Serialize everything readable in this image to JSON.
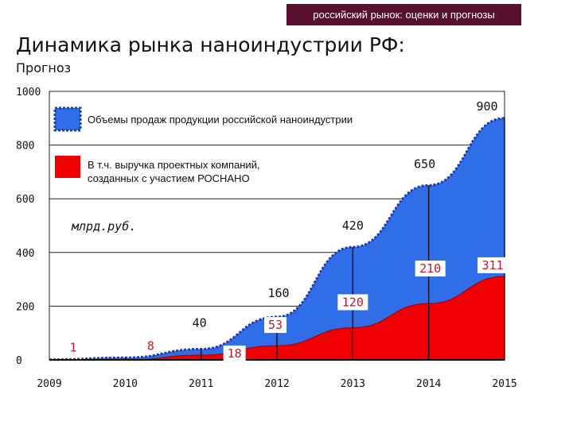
{
  "header": {
    "banner": "российский рынок: оценки и прогнозы",
    "title": "Динамика рынка наноиндустрии РФ:",
    "subtitle": "Прогноз"
  },
  "colors": {
    "banner_bg": "#5a0f2e",
    "total_fill": "#2f6ee8",
    "total_outline": "#1f3fa8",
    "revenue_fill": "#f00000",
    "value_label": "#c0182a"
  },
  "chart_data": {
    "type": "area",
    "x": [
      2009,
      2010,
      2011,
      2012,
      2013,
      2014,
      2015
    ],
    "xticks": [
      "2009",
      "2010",
      "2011",
      "2012",
      "2013",
      "2014",
      "2015"
    ],
    "yticks": [
      "0",
      "200",
      "400",
      "600",
      "800",
      "1000"
    ],
    "ylim": [
      0,
      1000
    ],
    "unit_note": "млрд.руб.",
    "grid": "horizontal",
    "series": [
      {
        "name": "Объемы продаж продукции российской наноиндустрии",
        "key": "total",
        "values": [
          1,
          8,
          40,
          160,
          420,
          650,
          900
        ],
        "labels": [
          "1",
          "8",
          "40",
          "160",
          "420",
          "650",
          "900"
        ]
      },
      {
        "name_line1": "В т.ч. выручка проектных компаний,",
        "name_line2": "созданных с участием РОСНАНО",
        "key": "revenue",
        "values": [
          0,
          0,
          18,
          53,
          120,
          210,
          311
        ],
        "labels": [
          "",
          "",
          "18",
          "53",
          "120",
          "210",
          "311"
        ]
      }
    ]
  }
}
